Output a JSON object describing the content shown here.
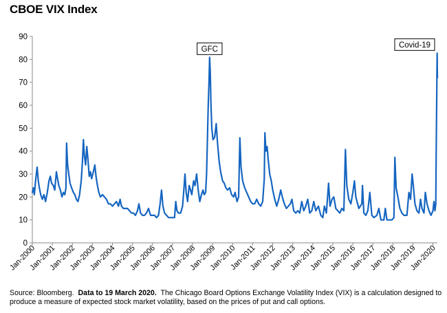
{
  "title": "CBOE VIX Index",
  "source": {
    "prefix": "Source: Bloomberg.",
    "bold": "Data to 19 March 2020.",
    "rest": "The Chicago Board Options Exchange Volatility Index (VIX) is a calculation designed to produce a measure of expected stock market volatility, based on the prices of put and call options."
  },
  "colors": {
    "series": "#1565c0",
    "axis": "#888888",
    "text": "#000000",
    "annotation_border": "#000000"
  },
  "chart_data": {
    "type": "line",
    "title": "CBOE VIX Index",
    "xlabel": "",
    "ylabel": "",
    "ylim": [
      0,
      90
    ],
    "yticks": [
      0,
      10,
      20,
      30,
      40,
      50,
      60,
      70,
      80,
      90
    ],
    "xlim": [
      2000.0,
      2020.22
    ],
    "xticks": [
      {
        "label": "Jan-2000",
        "x": 2000
      },
      {
        "label": "Jan-2001",
        "x": 2001
      },
      {
        "label": "Jan-2002",
        "x": 2002
      },
      {
        "label": "Jan-2003",
        "x": 2003
      },
      {
        "label": "Jan-2004",
        "x": 2004
      },
      {
        "label": "Jan-2005",
        "x": 2005
      },
      {
        "label": "Jan-2006",
        "x": 2006
      },
      {
        "label": "Jan-2007",
        "x": 2007
      },
      {
        "label": "Jan-2008",
        "x": 2008
      },
      {
        "label": "Jan-2009",
        "x": 2009
      },
      {
        "label": "Jan-2010",
        "x": 2010
      },
      {
        "label": "Jan-2011",
        "x": 2011
      },
      {
        "label": "Jan-2012",
        "x": 2012
      },
      {
        "label": "Jan-2013",
        "x": 2013
      },
      {
        "label": "Jan-2014",
        "x": 2014
      },
      {
        "label": "Jan-2015",
        "x": 2015
      },
      {
        "label": "Jan-2016",
        "x": 2016
      },
      {
        "label": "Jan-2017",
        "x": 2017
      },
      {
        "label": "Jan-2018",
        "x": 2018
      },
      {
        "label": "Jan-2019",
        "x": 2019
      },
      {
        "label": "Jan-2020",
        "x": 2020
      }
    ],
    "grid": false,
    "legend": "none",
    "annotations": [
      {
        "text": "GFC",
        "x": 2008.85,
        "y": 80.9
      },
      {
        "text": "Covid-19",
        "x": 2020.21,
        "y": 82.7
      }
    ],
    "series": [
      {
        "name": "",
        "points": [
          [
            2000.0,
            22
          ],
          [
            2000.05,
            24
          ],
          [
            2000.1,
            21
          ],
          [
            2000.15,
            26
          ],
          [
            2000.2,
            30
          ],
          [
            2000.24,
            33
          ],
          [
            2000.3,
            27
          ],
          [
            2000.35,
            24
          ],
          [
            2000.42,
            21
          ],
          [
            2000.5,
            19
          ],
          [
            2000.58,
            21
          ],
          [
            2000.66,
            18
          ],
          [
            2000.75,
            22
          ],
          [
            2000.83,
            27
          ],
          [
            2000.9,
            29
          ],
          [
            2000.96,
            26
          ],
          [
            2001.05,
            25
          ],
          [
            2001.12,
            23
          ],
          [
            2001.2,
            31
          ],
          [
            2001.26,
            28
          ],
          [
            2001.32,
            25
          ],
          [
            2001.4,
            23
          ],
          [
            2001.48,
            20
          ],
          [
            2001.55,
            22
          ],
          [
            2001.62,
            21
          ],
          [
            2001.68,
            24
          ],
          [
            2001.71,
            43.5
          ],
          [
            2001.76,
            34
          ],
          [
            2001.82,
            30
          ],
          [
            2001.88,
            26
          ],
          [
            2001.96,
            24
          ],
          [
            2002.05,
            22
          ],
          [
            2002.12,
            21
          ],
          [
            2002.2,
            19
          ],
          [
            2002.28,
            18
          ],
          [
            2002.36,
            21
          ],
          [
            2002.44,
            27
          ],
          [
            2002.5,
            35
          ],
          [
            2002.55,
            45
          ],
          [
            2002.6,
            38
          ],
          [
            2002.66,
            34
          ],
          [
            2002.72,
            42
          ],
          [
            2002.78,
            36
          ],
          [
            2002.84,
            29
          ],
          [
            2002.9,
            31
          ],
          [
            2002.96,
            28
          ],
          [
            2003.05,
            31
          ],
          [
            2003.12,
            34
          ],
          [
            2003.18,
            29
          ],
          [
            2003.25,
            25
          ],
          [
            2003.32,
            22
          ],
          [
            2003.4,
            20
          ],
          [
            2003.5,
            21
          ],
          [
            2003.6,
            20
          ],
          [
            2003.7,
            19
          ],
          [
            2003.8,
            17
          ],
          [
            2003.9,
            17
          ],
          [
            2004.0,
            16
          ],
          [
            2004.1,
            17
          ],
          [
            2004.2,
            18
          ],
          [
            2004.3,
            16
          ],
          [
            2004.38,
            19
          ],
          [
            2004.45,
            16
          ],
          [
            2004.55,
            15
          ],
          [
            2004.65,
            15
          ],
          [
            2004.75,
            15
          ],
          [
            2004.85,
            14
          ],
          [
            2004.95,
            13
          ],
          [
            2005.05,
            13
          ],
          [
            2005.15,
            12
          ],
          [
            2005.25,
            14
          ],
          [
            2005.32,
            17
          ],
          [
            2005.4,
            13
          ],
          [
            2005.5,
            12
          ],
          [
            2005.6,
            12
          ],
          [
            2005.7,
            13
          ],
          [
            2005.8,
            15
          ],
          [
            2005.9,
            12
          ],
          [
            2006.0,
            12
          ],
          [
            2006.1,
            12
          ],
          [
            2006.2,
            11
          ],
          [
            2006.3,
            12
          ],
          [
            2006.38,
            17
          ],
          [
            2006.45,
            23
          ],
          [
            2006.52,
            16
          ],
          [
            2006.6,
            13
          ],
          [
            2006.7,
            12
          ],
          [
            2006.8,
            11
          ],
          [
            2006.9,
            11
          ],
          [
            2007.0,
            11
          ],
          [
            2007.1,
            11
          ],
          [
            2007.16,
            18
          ],
          [
            2007.22,
            14
          ],
          [
            2007.3,
            13
          ],
          [
            2007.4,
            13
          ],
          [
            2007.5,
            16
          ],
          [
            2007.58,
            25
          ],
          [
            2007.62,
            30
          ],
          [
            2007.68,
            22
          ],
          [
            2007.75,
            18
          ],
          [
            2007.83,
            25
          ],
          [
            2007.9,
            23
          ],
          [
            2007.96,
            21
          ],
          [
            2008.05,
            27
          ],
          [
            2008.12,
            25
          ],
          [
            2008.2,
            30
          ],
          [
            2008.28,
            23
          ],
          [
            2008.36,
            18
          ],
          [
            2008.44,
            21
          ],
          [
            2008.52,
            23
          ],
          [
            2008.58,
            21
          ],
          [
            2008.65,
            22
          ],
          [
            2008.7,
            30
          ],
          [
            2008.74,
            45
          ],
          [
            2008.78,
            60
          ],
          [
            2008.82,
            70
          ],
          [
            2008.85,
            80.9
          ],
          [
            2008.88,
            75
          ],
          [
            2008.92,
            60
          ],
          [
            2008.96,
            50
          ],
          [
            2009.02,
            45
          ],
          [
            2009.1,
            46
          ],
          [
            2009.18,
            52
          ],
          [
            2009.24,
            44
          ],
          [
            2009.32,
            36
          ],
          [
            2009.4,
            31
          ],
          [
            2009.5,
            27
          ],
          [
            2009.58,
            26
          ],
          [
            2009.66,
            24
          ],
          [
            2009.75,
            23
          ],
          [
            2009.85,
            24
          ],
          [
            2009.95,
            21
          ],
          [
            2010.05,
            20
          ],
          [
            2010.12,
            22
          ],
          [
            2010.22,
            18
          ],
          [
            2010.3,
            20
          ],
          [
            2010.36,
            45.8
          ],
          [
            2010.42,
            33
          ],
          [
            2010.5,
            27
          ],
          [
            2010.6,
            24
          ],
          [
            2010.7,
            22
          ],
          [
            2010.8,
            20
          ],
          [
            2010.9,
            18
          ],
          [
            2011.0,
            17
          ],
          [
            2011.1,
            17
          ],
          [
            2011.2,
            19
          ],
          [
            2011.3,
            17
          ],
          [
            2011.4,
            16
          ],
          [
            2011.5,
            18
          ],
          [
            2011.58,
            28
          ],
          [
            2011.61,
            48
          ],
          [
            2011.66,
            40
          ],
          [
            2011.72,
            42
          ],
          [
            2011.78,
            36
          ],
          [
            2011.85,
            30
          ],
          [
            2011.93,
            27
          ],
          [
            2012.0,
            23
          ],
          [
            2012.1,
            19
          ],
          [
            2012.2,
            16
          ],
          [
            2012.3,
            19
          ],
          [
            2012.4,
            23
          ],
          [
            2012.48,
            20
          ],
          [
            2012.58,
            17
          ],
          [
            2012.68,
            15
          ],
          [
            2012.78,
            16
          ],
          [
            2012.88,
            17
          ],
          [
            2012.96,
            19
          ],
          [
            2013.05,
            14
          ],
          [
            2013.15,
            13
          ],
          [
            2013.25,
            14
          ],
          [
            2013.35,
            13
          ],
          [
            2013.45,
            18
          ],
          [
            2013.55,
            14
          ],
          [
            2013.65,
            16
          ],
          [
            2013.75,
            19
          ],
          [
            2013.85,
            13
          ],
          [
            2013.95,
            14
          ],
          [
            2014.05,
            18
          ],
          [
            2014.15,
            14
          ],
          [
            2014.28,
            16
          ],
          [
            2014.4,
            12
          ],
          [
            2014.5,
            11
          ],
          [
            2014.58,
            16
          ],
          [
            2014.68,
            13
          ],
          [
            2014.79,
            26
          ],
          [
            2014.86,
            16
          ],
          [
            2014.96,
            19
          ],
          [
            2015.05,
            20
          ],
          [
            2015.15,
            15
          ],
          [
            2015.25,
            14
          ],
          [
            2015.35,
            13
          ],
          [
            2015.45,
            15
          ],
          [
            2015.55,
            14
          ],
          [
            2015.63,
            40.7
          ],
          [
            2015.7,
            25
          ],
          [
            2015.8,
            19
          ],
          [
            2015.9,
            17
          ],
          [
            2016.0,
            22
          ],
          [
            2016.08,
            27
          ],
          [
            2016.15,
            20
          ],
          [
            2016.3,
            15
          ],
          [
            2016.45,
            17
          ],
          [
            2016.48,
            25
          ],
          [
            2016.55,
            13
          ],
          [
            2016.65,
            12
          ],
          [
            2016.75,
            14
          ],
          [
            2016.85,
            22
          ],
          [
            2016.95,
            12
          ],
          [
            2017.05,
            11
          ],
          [
            2017.2,
            12
          ],
          [
            2017.3,
            15
          ],
          [
            2017.4,
            10
          ],
          [
            2017.55,
            10
          ],
          [
            2017.62,
            15
          ],
          [
            2017.7,
            10
          ],
          [
            2017.85,
            10
          ],
          [
            2017.95,
            10
          ],
          [
            2018.05,
            11
          ],
          [
            2018.1,
            37.3
          ],
          [
            2018.16,
            24
          ],
          [
            2018.25,
            20
          ],
          [
            2018.35,
            15
          ],
          [
            2018.45,
            13
          ],
          [
            2018.55,
            12
          ],
          [
            2018.7,
            12
          ],
          [
            2018.8,
            22
          ],
          [
            2018.88,
            19
          ],
          [
            2018.96,
            30
          ],
          [
            2019.02,
            25
          ],
          [
            2019.1,
            17
          ],
          [
            2019.2,
            14
          ],
          [
            2019.3,
            13
          ],
          [
            2019.38,
            19
          ],
          [
            2019.45,
            15
          ],
          [
            2019.55,
            13
          ],
          [
            2019.62,
            22
          ],
          [
            2019.7,
            17
          ],
          [
            2019.8,
            14
          ],
          [
            2019.9,
            12
          ],
          [
            2020.0,
            14
          ],
          [
            2020.05,
            18
          ],
          [
            2020.1,
            14
          ],
          [
            2020.14,
            17
          ],
          [
            2020.16,
            40
          ],
          [
            2020.18,
            55
          ],
          [
            2020.2,
            75
          ],
          [
            2020.21,
            82.7
          ],
          [
            2020.22,
            72
          ]
        ]
      }
    ]
  }
}
